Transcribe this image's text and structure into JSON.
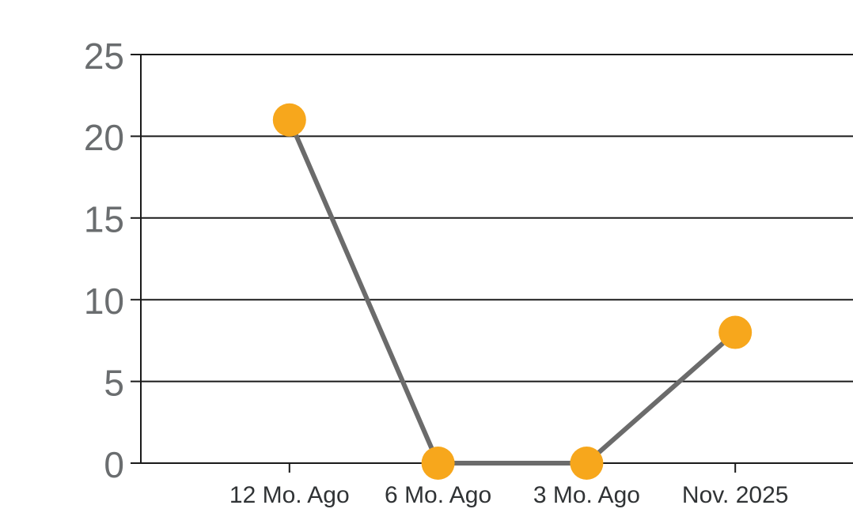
{
  "chart_data": {
    "type": "line",
    "categories": [
      "12 Mo. Ago",
      "6 Mo. Ago",
      "3 Mo. Ago",
      "Nov. 2025"
    ],
    "values": [
      21,
      0,
      0,
      8
    ],
    "title": "",
    "xlabel": "",
    "ylabel": "",
    "ylim": [
      0,
      25
    ],
    "ytick_interval": 5,
    "ytick_labels": [
      "0",
      "5",
      "10",
      "15",
      "20",
      "25"
    ],
    "grid": true,
    "legend": "none",
    "colors": {
      "marker": "#F7A71C",
      "series_line": "#6B6B6B",
      "grid": "#1A1A1A",
      "axis": "#1A1A1A",
      "ytick_label": "#6A6D6F",
      "xtick_label": "#303335",
      "background": "#FFFFFF"
    }
  }
}
